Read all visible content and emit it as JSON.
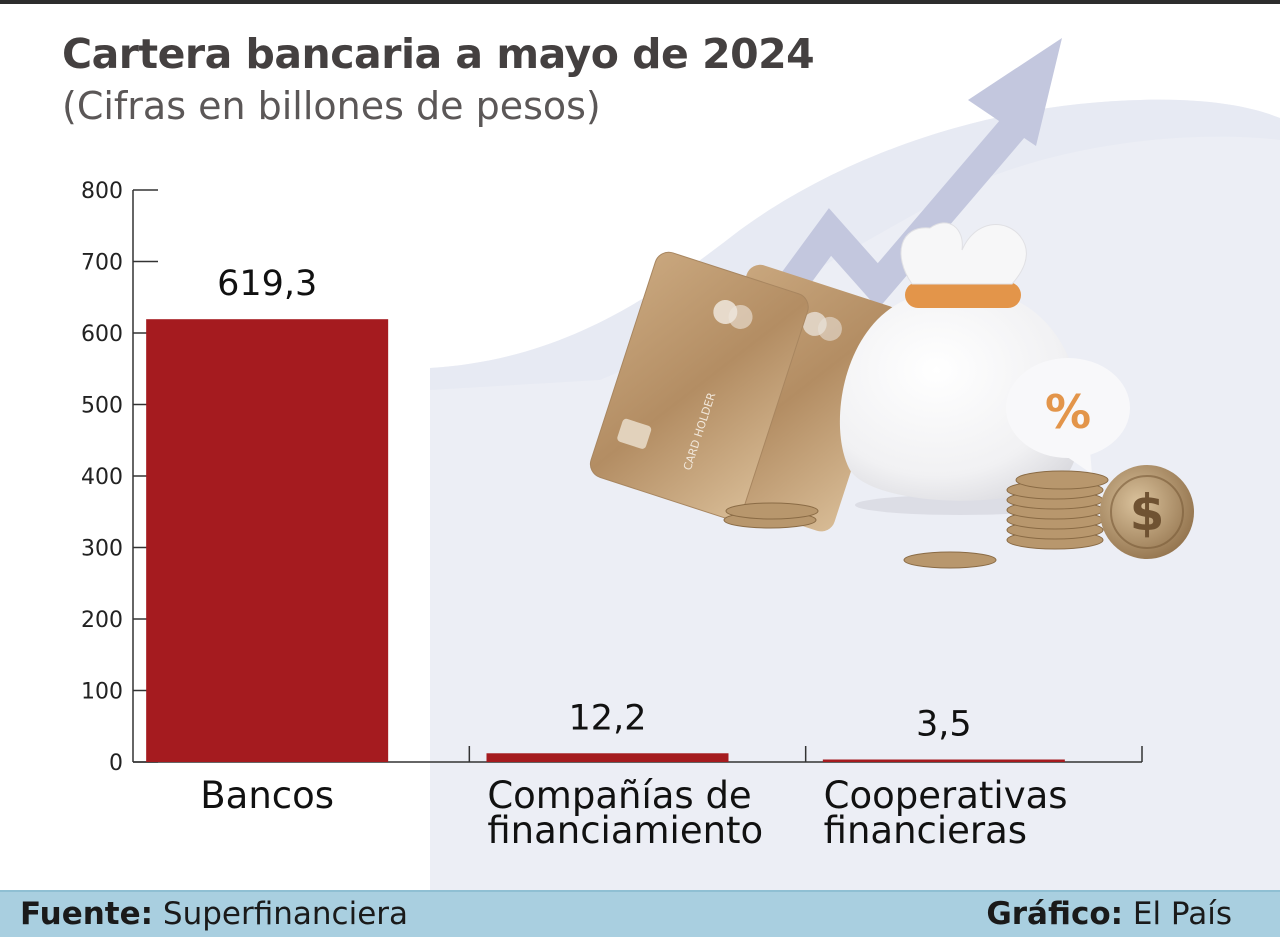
{
  "header": {
    "title": "Cartera bancaria a mayo de 2024",
    "subtitle": "(Cifras en billones de pesos)"
  },
  "footer": {
    "source_label": "Fuente:",
    "source_value": "Superfinanciera",
    "credit_label": "Gráfico:",
    "credit_value": "El País"
  },
  "colors": {
    "bar": "#a51b1f",
    "accent_arrow": "#c3c7de",
    "footer_bg": "#a9cfe0",
    "background_shape": "#eceef5"
  },
  "illustration": {
    "card_text": "CARD HOLDER",
    "bubble_symbol": "%",
    "coin_symbol": "$"
  },
  "chart_data": {
    "type": "bar",
    "categories": [
      [
        "Bancos"
      ],
      [
        "Compañías de",
        "financiamiento"
      ],
      [
        "Cooperativas",
        "financieras"
      ]
    ],
    "values": [
      619.3,
      12.2,
      3.5
    ],
    "data_labels": [
      "619,3",
      "12,2",
      "3,5"
    ],
    "yticks": [
      0,
      100,
      200,
      300,
      400,
      500,
      600,
      700,
      800
    ],
    "ylim": [
      0,
      800
    ],
    "xlabel": "",
    "ylabel": "",
    "grid": false,
    "legend": "none"
  }
}
